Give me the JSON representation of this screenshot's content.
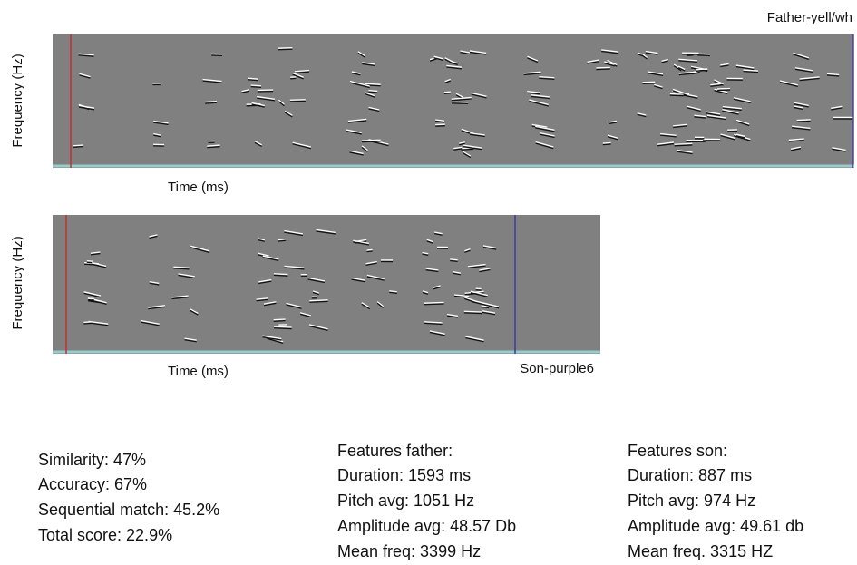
{
  "panels": [
    {
      "name": "Father-yell/wh",
      "y_label": "Frequency (Hz)",
      "x_label": "Time (ms)"
    },
    {
      "name": "Son-purple6",
      "y_label": "Frequency (Hz)",
      "x_label": "Time (ms)"
    }
  ],
  "scores": [
    "Similarity: 47%",
    "Accuracy: 67%",
    "Sequential match: 45.2%",
    "Total score: 22.9%"
  ],
  "father": {
    "title": "Features father:",
    "lines": [
      "Duration: 1593 ms",
      "Pitch avg: 1051 Hz",
      "Amplitude avg: 48.57 Db",
      "Mean freq: 3399 Hz"
    ]
  },
  "son": {
    "title": "Features son:",
    "lines": [
      "Duration: 887 ms",
      "Pitch avg: 974 Hz",
      "Amplitude avg: 49.61 db",
      "Mean freq. 3315 HZ"
    ]
  }
}
